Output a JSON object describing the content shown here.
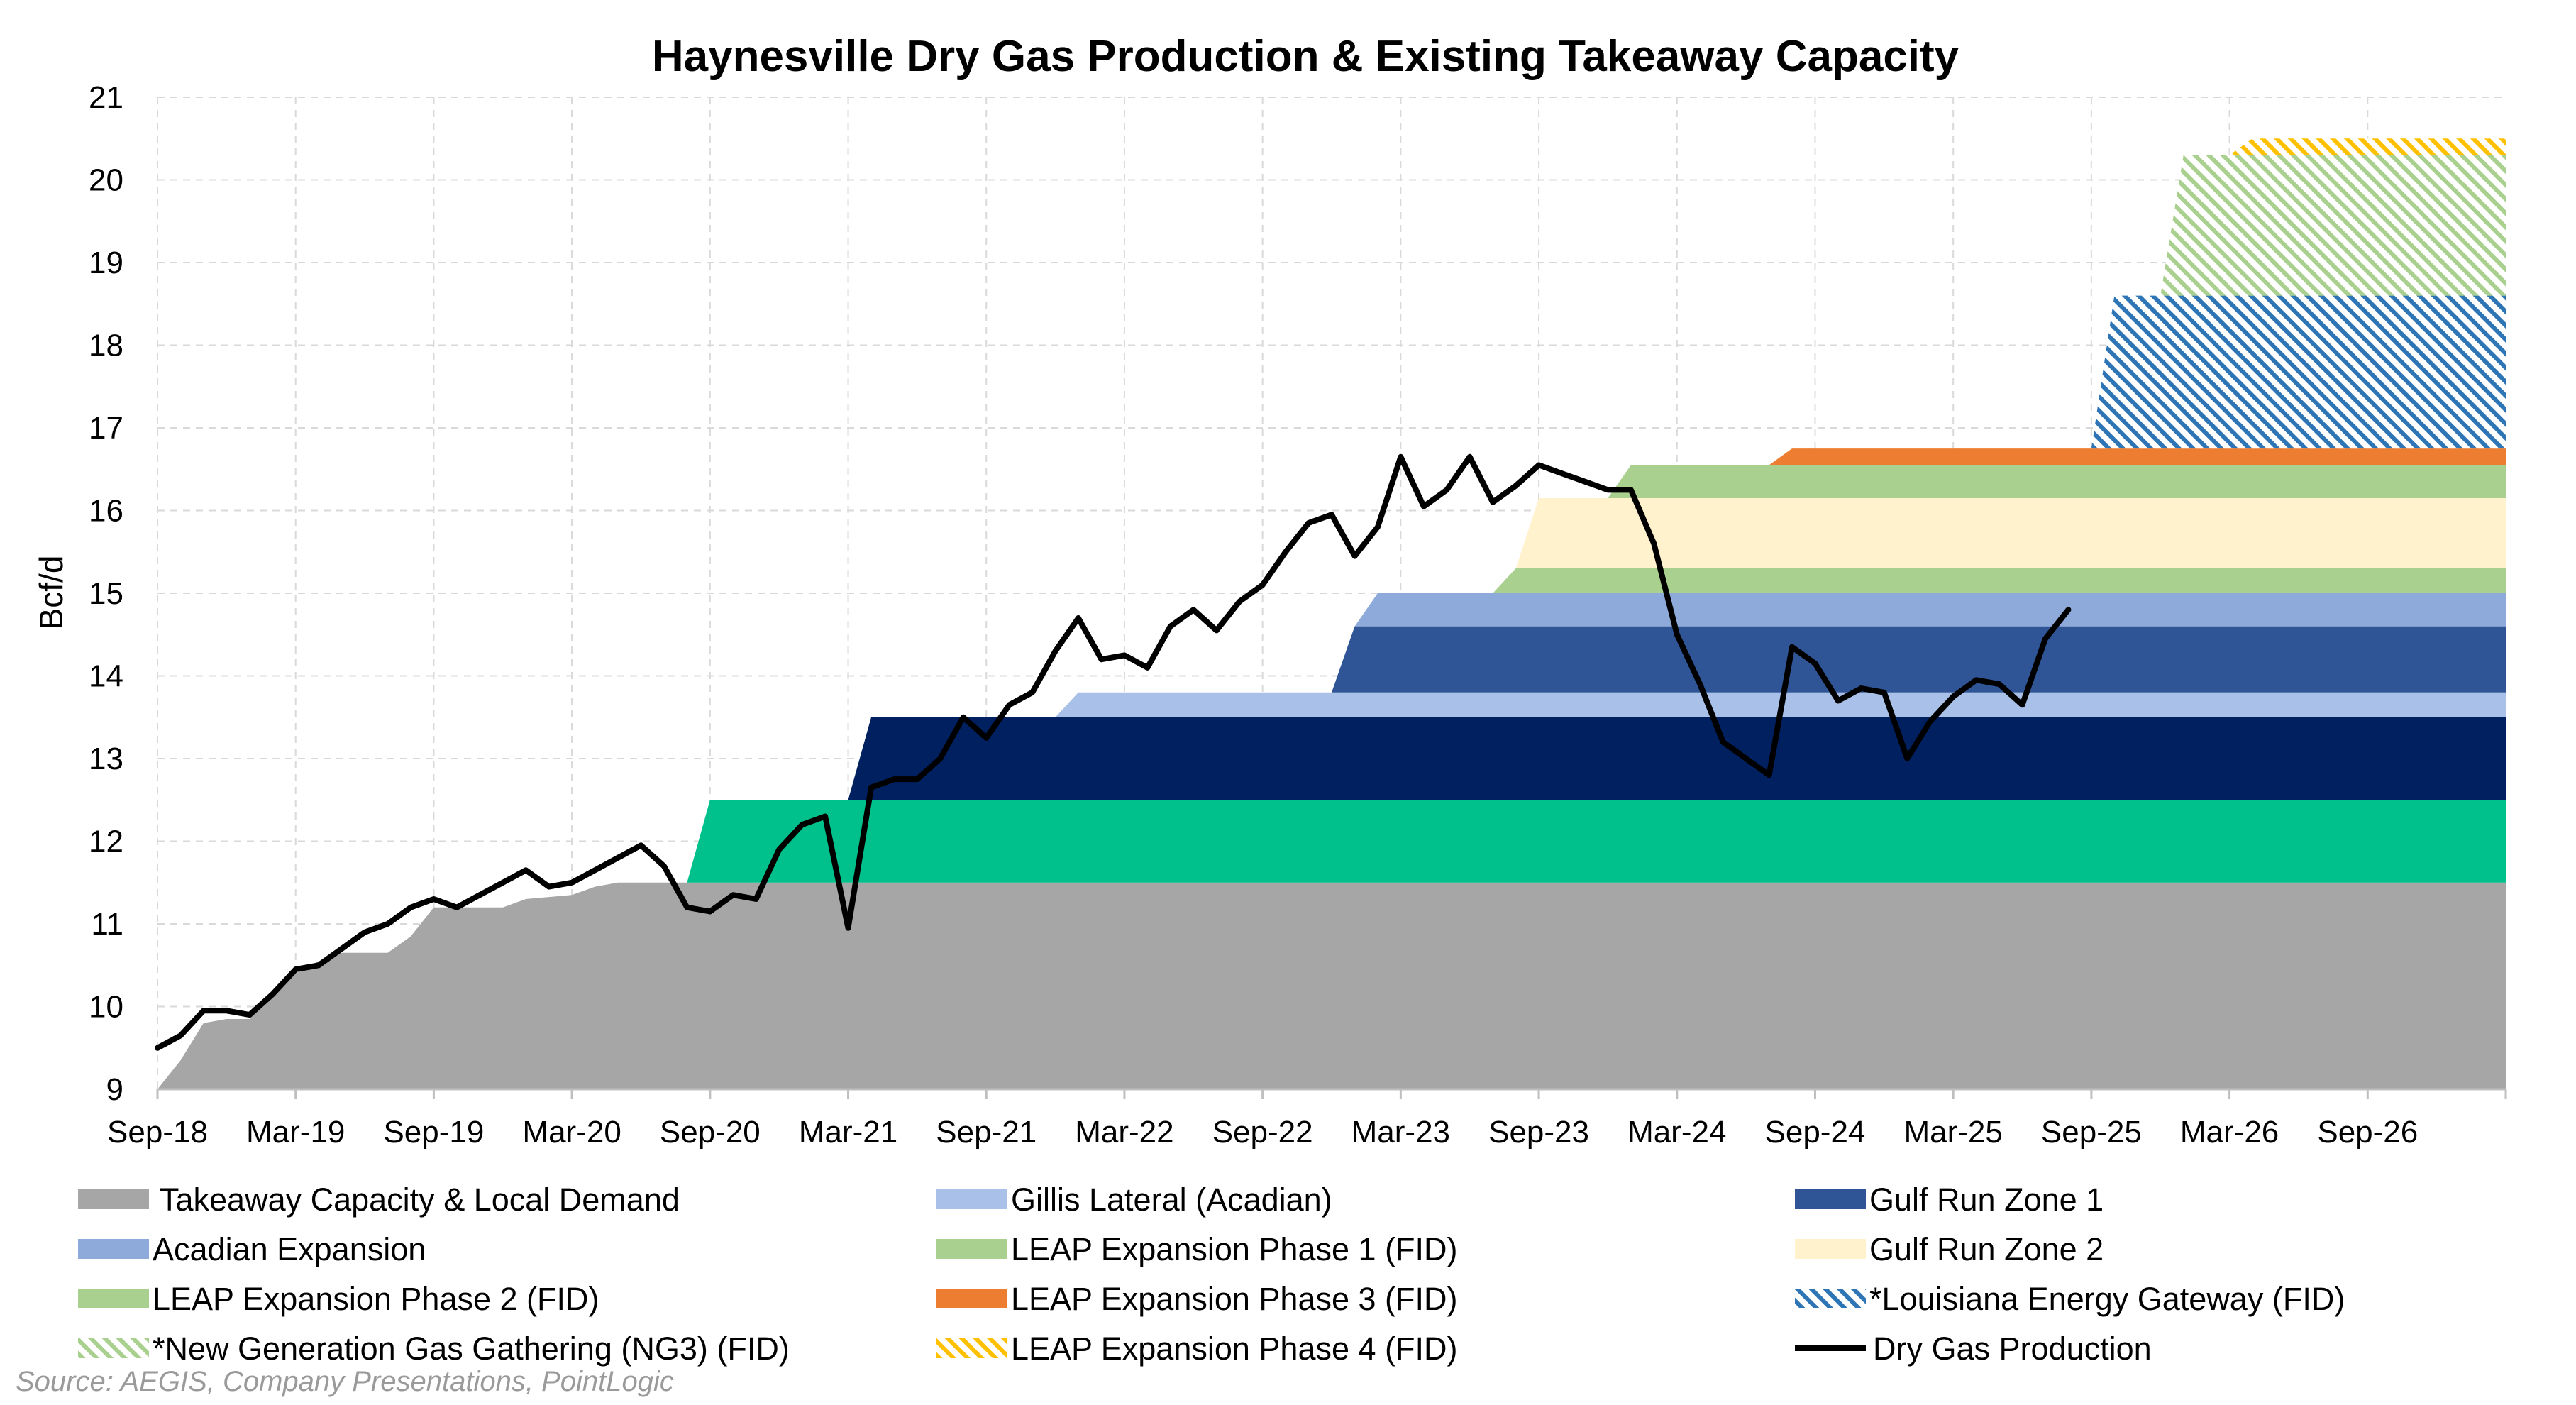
{
  "chart_data": {
    "type": "area",
    "title": "Haynesville Dry Gas Production & Existing Takeaway Capacity",
    "ylabel": "Bcf/d",
    "xlabel": "",
    "ylim": [
      9,
      21
    ],
    "yticks": [
      9,
      10,
      11,
      12,
      13,
      14,
      15,
      16,
      17,
      18,
      19,
      20,
      21
    ],
    "x_start": "2018-09",
    "x_end": "2027-03",
    "x_ticks": [
      "Sep-18",
      "Mar-19",
      "Sep-19",
      "Mar-20",
      "Sep-20",
      "Mar-21",
      "Sep-21",
      "Mar-22",
      "Sep-22",
      "Mar-23",
      "Sep-23",
      "Mar-24",
      "Sep-24",
      "Mar-25",
      "Sep-25",
      "Mar-26",
      "Sep-26"
    ],
    "grid": true,
    "legend_position": "bottom",
    "series": [
      {
        "name": "Takeaway Capacity & Local Demand",
        "color": "#a6a6a6",
        "pattern": "solid",
        "type": "area",
        "points": [
          [
            "2018-09",
            9.0
          ],
          [
            "2018-10",
            9.35
          ],
          [
            "2018-11",
            9.8
          ],
          [
            "2018-12",
            9.85
          ],
          [
            "2019-01",
            9.85
          ],
          [
            "2019-02",
            10.2
          ],
          [
            "2019-03",
            10.4
          ],
          [
            "2019-04",
            10.55
          ],
          [
            "2019-05",
            10.65
          ],
          [
            "2019-07",
            10.65
          ],
          [
            "2019-08",
            10.85
          ],
          [
            "2019-09",
            11.2
          ],
          [
            "2019-12",
            11.2
          ],
          [
            "2020-01",
            11.3
          ],
          [
            "2020-03",
            11.35
          ],
          [
            "2020-04",
            11.45
          ],
          [
            "2020-05",
            11.5
          ],
          [
            "2027-03",
            11.5
          ]
        ]
      },
      {
        "name": "Gillis Lateral (Acadian)",
        "color": "#a9c0e8",
        "pattern": "solid",
        "type": "band",
        "start": "2021-12",
        "ramp": 1,
        "height": 0.3
      },
      {
        "name": "Gulf Run Zone 1",
        "color": "#2f5597",
        "pattern": "solid",
        "type": "band",
        "start": "2022-12",
        "ramp": 1,
        "height": 0.8
      },
      {
        "name": "Acadian Expansion",
        "color": "#8eaadb",
        "pattern": "solid",
        "type": "band",
        "start": "2023-01",
        "ramp": 1,
        "height": 0.4
      },
      {
        "name": "LEAP Expansion Phase 1 (FID)",
        "color": "#a9d08e",
        "pattern": "solid",
        "type": "band",
        "start": "2023-07",
        "ramp": 1,
        "height": 0.3
      },
      {
        "name": "Gulf Run Zone 2",
        "color": "#fff2cc",
        "pattern": "solid",
        "type": "band",
        "start": "2023-08",
        "ramp": 1,
        "height": 0.85
      },
      {
        "name": "LEAP Expansion Phase 2 (FID)",
        "color": "#a9d08e",
        "pattern": "solid",
        "type": "band",
        "start": "2023-12",
        "ramp": 1,
        "height": 0.4
      },
      {
        "name": "LEAP Expansion Phase 3 (FID)",
        "color": "#ed7d31",
        "pattern": "solid",
        "type": "band",
        "start": "2024-07",
        "ramp": 1,
        "height": 0.2
      },
      {
        "name": "*Louisiana Energy Gateway (FID)",
        "color": "#2e75b6",
        "pattern": "hatch",
        "type": "band",
        "start": "2025-09",
        "ramp": 1,
        "height": 1.85
      },
      {
        "name": "*New Generation Gas Gathering (NG3) (FID)",
        "color": "#a9d08e",
        "pattern": "hatch",
        "type": "band",
        "start": "2025-12",
        "ramp": 1,
        "height": 1.7
      },
      {
        "name": "LEAP Expansion Phase 4 (FID)",
        "color": "#ffc000",
        "pattern": "hatch",
        "type": "band",
        "start": "2026-03",
        "ramp": 1,
        "height": 0.2
      },
      {
        "name": "Dry Gas Production",
        "color": "#000000",
        "type": "line",
        "points": [
          [
            "2018-09",
            9.5
          ],
          [
            "2018-10",
            9.65
          ],
          [
            "2018-11",
            9.95
          ],
          [
            "2018-12",
            9.95
          ],
          [
            "2019-01",
            9.9
          ],
          [
            "2019-02",
            10.15
          ],
          [
            "2019-03",
            10.45
          ],
          [
            "2019-04",
            10.5
          ],
          [
            "2019-05",
            10.7
          ],
          [
            "2019-06",
            10.9
          ],
          [
            "2019-07",
            11.0
          ],
          [
            "2019-08",
            11.2
          ],
          [
            "2019-09",
            11.3
          ],
          [
            "2019-10",
            11.2
          ],
          [
            "2019-11",
            11.35
          ],
          [
            "2019-12",
            11.5
          ],
          [
            "2020-01",
            11.65
          ],
          [
            "2020-02",
            11.45
          ],
          [
            "2020-03",
            11.5
          ],
          [
            "2020-04",
            11.65
          ],
          [
            "2020-05",
            11.8
          ],
          [
            "2020-06",
            11.95
          ],
          [
            "2020-07",
            11.7
          ],
          [
            "2020-08",
            11.2
          ],
          [
            "2020-09",
            11.15
          ],
          [
            "2020-10",
            11.35
          ],
          [
            "2020-11",
            11.3
          ],
          [
            "2020-12",
            11.9
          ],
          [
            "2021-01",
            12.2
          ],
          [
            "2021-02",
            12.3
          ],
          [
            "2021-03",
            10.95
          ],
          [
            "2021-04",
            12.65
          ],
          [
            "2021-05",
            12.75
          ],
          [
            "2021-06",
            12.75
          ],
          [
            "2021-07",
            13.0
          ],
          [
            "2021-08",
            13.5
          ],
          [
            "2021-09",
            13.25
          ],
          [
            "2021-10",
            13.65
          ],
          [
            "2021-11",
            13.8
          ],
          [
            "2021-12",
            14.3
          ],
          [
            "2022-01",
            14.7
          ],
          [
            "2022-02",
            14.2
          ],
          [
            "2022-03",
            14.25
          ],
          [
            "2022-04",
            14.1
          ],
          [
            "2022-05",
            14.6
          ],
          [
            "2022-06",
            14.8
          ],
          [
            "2022-07",
            14.55
          ],
          [
            "2022-08",
            14.9
          ],
          [
            "2022-09",
            15.1
          ],
          [
            "2022-10",
            15.5
          ],
          [
            "2022-11",
            15.85
          ],
          [
            "2022-12",
            15.95
          ],
          [
            "2023-01",
            15.45
          ],
          [
            "2023-02",
            15.8
          ],
          [
            "2023-03",
            16.65
          ],
          [
            "2023-04",
            16.05
          ],
          [
            "2023-05",
            16.25
          ],
          [
            "2023-06",
            16.65
          ],
          [
            "2023-07",
            16.1
          ],
          [
            "2023-08",
            16.3
          ],
          [
            "2023-09",
            16.55
          ],
          [
            "2023-10",
            16.45
          ],
          [
            "2023-11",
            16.35
          ],
          [
            "2023-12",
            16.25
          ],
          [
            "2024-01",
            16.25
          ],
          [
            "2024-02",
            15.6
          ],
          [
            "2024-03",
            14.5
          ],
          [
            "2024-04",
            13.9
          ],
          [
            "2024-05",
            13.2
          ],
          [
            "2024-06",
            13.0
          ],
          [
            "2024-07",
            12.8
          ],
          [
            "2024-08",
            14.35
          ],
          [
            "2024-09",
            14.15
          ],
          [
            "2024-10",
            13.7
          ],
          [
            "2024-11",
            13.85
          ],
          [
            "2024-12",
            13.8
          ],
          [
            "2025-01",
            13.0
          ],
          [
            "2025-02",
            13.45
          ],
          [
            "2025-03",
            13.75
          ],
          [
            "2025-04",
            13.95
          ],
          [
            "2025-05",
            13.9
          ],
          [
            "2025-06",
            13.65
          ],
          [
            "2025-07",
            14.45
          ],
          [
            "2025-08",
            14.8
          ]
        ]
      }
    ],
    "legend": [
      [
        "Takeaway Capacity & Local Demand",
        "Gillis Lateral (Acadian)",
        "Gulf Run Zone 1"
      ],
      [
        "Acadian Expansion",
        "LEAP Expansion Phase 1 (FID)",
        "Gulf Run Zone 2"
      ],
      [
        "LEAP Expansion Phase 2 (FID)",
        "LEAP Expansion Phase 3 (FID)",
        "*Louisiana Energy Gateway (FID)"
      ],
      [
        "*New Generation Gas Gathering (NG3) (FID)",
        "LEAP Expansion Phase 4 (FID)",
        "Dry Gas Production"
      ]
    ],
    "extra_bands": [
      {
        "color": "#00c08b",
        "pattern": "solid",
        "start": "2020-08",
        "ramp": 1,
        "height": 1.0
      },
      {
        "color": "#002060",
        "pattern": "solid",
        "start": "2021-03",
        "ramp": 1,
        "height": 1.0
      }
    ],
    "stack_order": [
      "Takeaway Capacity & Local Demand",
      "extra:0",
      "extra:1",
      "Gillis Lateral (Acadian)",
      "Gulf Run Zone 1",
      "Acadian Expansion",
      "LEAP Expansion Phase 1 (FID)",
      "Gulf Run Zone 2",
      "LEAP Expansion Phase 2 (FID)",
      "LEAP Expansion Phase 3 (FID)",
      "*Louisiana Energy Gateway (FID)",
      "*New Generation Gas Gathering (NG3) (FID)",
      "LEAP Expansion Phase 4 (FID)"
    ],
    "source": "Source: AEGIS, Company Presentations, PointLogic"
  }
}
